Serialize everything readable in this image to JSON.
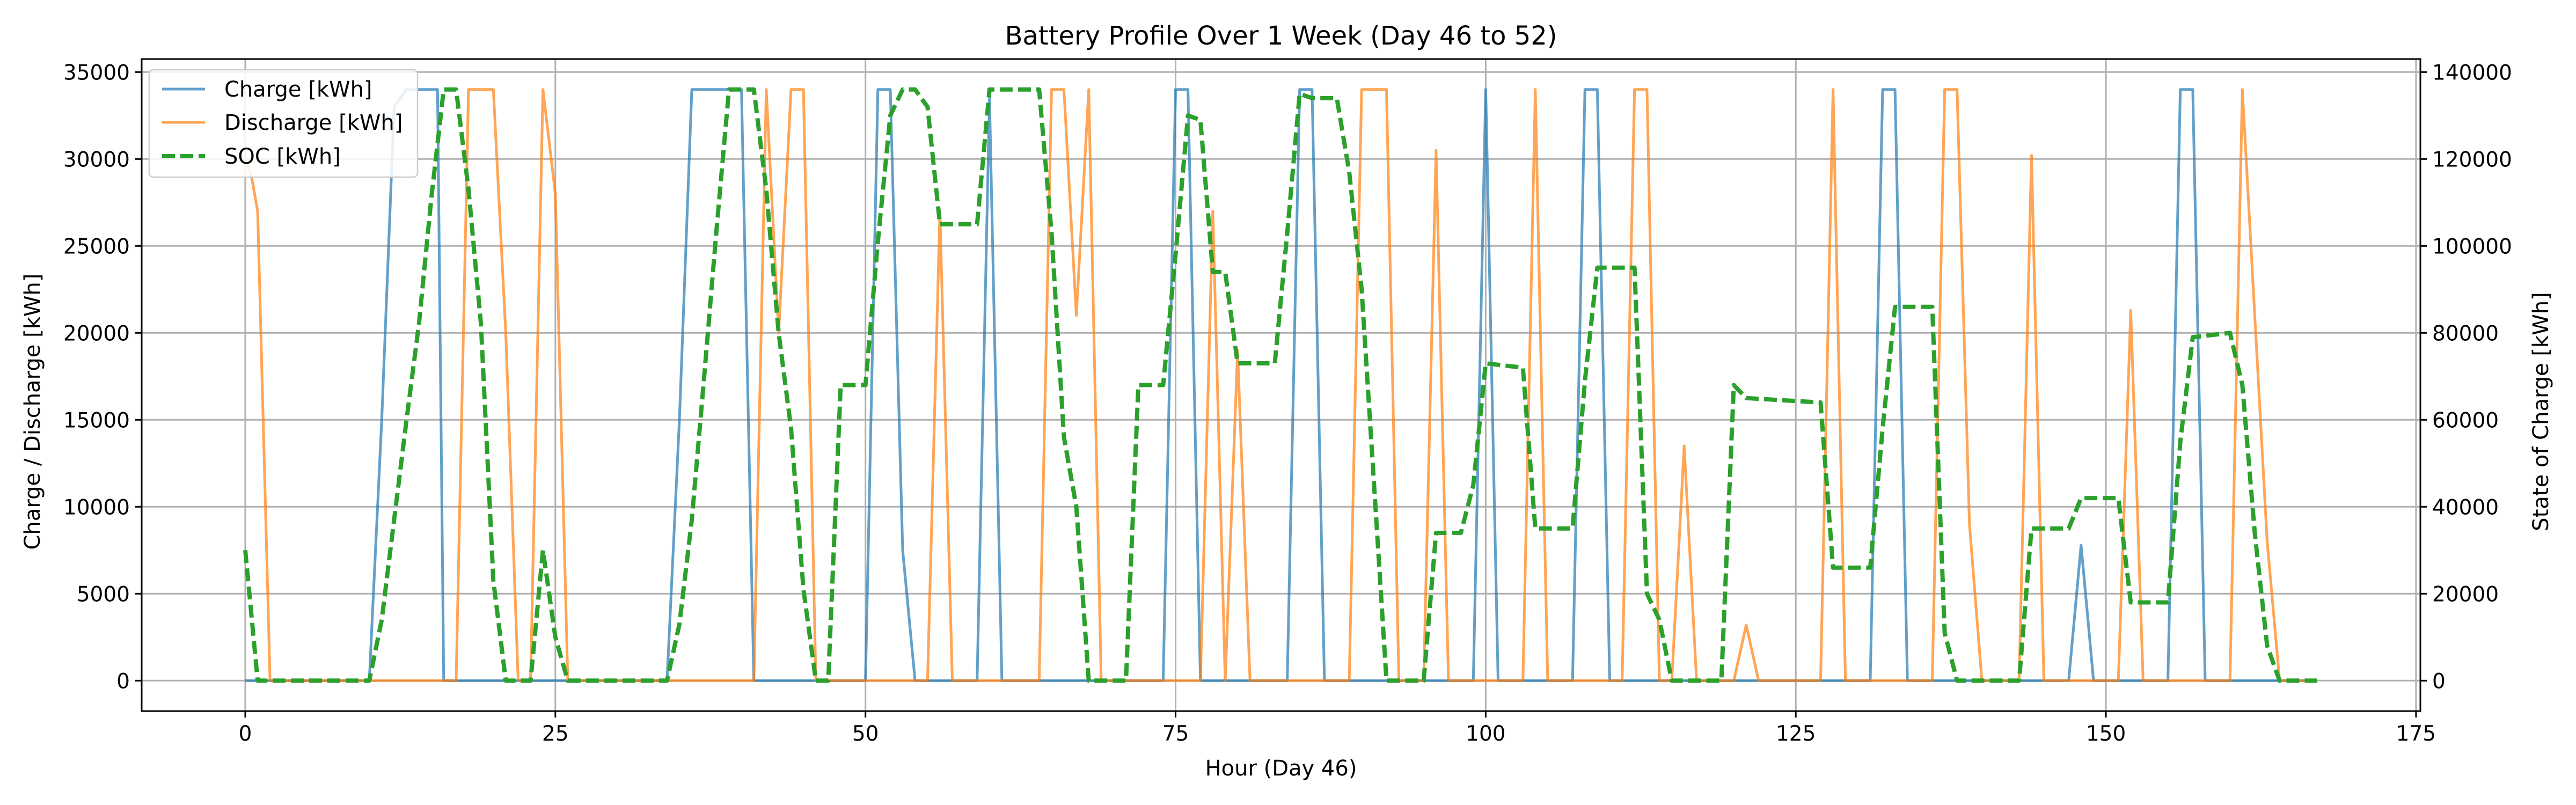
{
  "chart_data": {
    "type": "line",
    "title": "Battery Profile Over 1 Week (Day 46 to 52)",
    "xlabel": "Hour (Day 46)",
    "ylabel_left": "Charge / Discharge [kWh]",
    "ylabel_right": "State of Charge [kWh]",
    "xlim": [
      -8.35,
      175.35
    ],
    "ylim_left": [
      -1750,
      35750
    ],
    "ylim_right": [
      -7000,
      143000
    ],
    "x_ticks": [
      0,
      25,
      50,
      75,
      100,
      125,
      150,
      175
    ],
    "y_left_ticks": [
      0,
      5000,
      10000,
      15000,
      20000,
      25000,
      30000,
      35000
    ],
    "y_right_ticks": [
      0,
      20000,
      40000,
      60000,
      80000,
      100000,
      120000,
      140000
    ],
    "grid": true,
    "legend_position": "upper-left",
    "colors": {
      "charge": "#1f77b4",
      "discharge": "#ff7f0e",
      "soc": "#2ca02c"
    },
    "series": [
      {
        "name": "Charge [kWh]",
        "axis": "left",
        "style": "solid",
        "points": [
          [
            0,
            0
          ],
          [
            10,
            0
          ],
          [
            11,
            15000
          ],
          [
            12,
            33000
          ],
          [
            13,
            34000
          ],
          [
            14,
            34000
          ],
          [
            15,
            34000
          ],
          [
            15.5,
            34000
          ],
          [
            16,
            0
          ],
          [
            34,
            0
          ],
          [
            35,
            15000
          ],
          [
            36,
            34000
          ],
          [
            37,
            34000
          ],
          [
            38,
            34000
          ],
          [
            39,
            34000
          ],
          [
            40,
            34000
          ],
          [
            41,
            0
          ],
          [
            50,
            0
          ],
          [
            51,
            34000
          ],
          [
            52,
            34000
          ],
          [
            53,
            7500
          ],
          [
            54,
            0
          ],
          [
            59,
            0
          ],
          [
            60,
            33500
          ],
          [
            61,
            0
          ],
          [
            74,
            0
          ],
          [
            75,
            34000
          ],
          [
            76,
            34000
          ],
          [
            77,
            0
          ],
          [
            84,
            0
          ],
          [
            85,
            34000
          ],
          [
            86,
            34000
          ],
          [
            87,
            0
          ],
          [
            99,
            0
          ],
          [
            100,
            34000
          ],
          [
            101,
            0
          ],
          [
            107,
            0
          ],
          [
            108,
            34000
          ],
          [
            109,
            34000
          ],
          [
            110,
            0
          ],
          [
            131,
            0
          ],
          [
            132,
            34000
          ],
          [
            133,
            34000
          ],
          [
            134,
            0
          ],
          [
            147,
            0
          ],
          [
            148,
            7800
          ],
          [
            149,
            0
          ],
          [
            155,
            0
          ],
          [
            156,
            34000
          ],
          [
            157,
            34000
          ],
          [
            158,
            0
          ],
          [
            167,
            0
          ]
        ]
      },
      {
        "name": "Discharge [kWh]",
        "axis": "left",
        "style": "solid",
        "points": [
          [
            0,
            30000
          ],
          [
            0.5,
            29000
          ],
          [
            1,
            27000
          ],
          [
            2,
            0
          ],
          [
            15,
            0
          ],
          [
            16,
            0
          ],
          [
            17,
            0
          ],
          [
            18,
            34000
          ],
          [
            19,
            34000
          ],
          [
            20,
            34000
          ],
          [
            21,
            20000
          ],
          [
            22,
            0
          ],
          [
            23,
            0
          ],
          [
            24,
            34000
          ],
          [
            25,
            28000
          ],
          [
            26,
            0
          ],
          [
            41,
            0
          ],
          [
            42,
            34000
          ],
          [
            43,
            20000
          ],
          [
            44,
            34000
          ],
          [
            45,
            34000
          ],
          [
            46,
            0
          ],
          [
            54,
            0
          ],
          [
            55,
            0
          ],
          [
            56,
            27000
          ],
          [
            57,
            0
          ],
          [
            64,
            0
          ],
          [
            65,
            34000
          ],
          [
            66,
            34000
          ],
          [
            67,
            21000
          ],
          [
            68,
            34000
          ],
          [
            69,
            0
          ],
          [
            77,
            0
          ],
          [
            78,
            27000
          ],
          [
            79,
            0
          ],
          [
            80,
            19000
          ],
          [
            81,
            0
          ],
          [
            89,
            0
          ],
          [
            90,
            34000
          ],
          [
            91,
            34000
          ],
          [
            92,
            34000
          ],
          [
            93,
            0
          ],
          [
            95,
            0
          ],
          [
            96,
            30500
          ],
          [
            97,
            0
          ],
          [
            103,
            0
          ],
          [
            104,
            34000
          ],
          [
            105,
            0
          ],
          [
            111,
            0
          ],
          [
            112,
            34000
          ],
          [
            113,
            34000
          ],
          [
            114,
            0
          ],
          [
            115,
            0
          ],
          [
            116,
            13500
          ],
          [
            117,
            0
          ],
          [
            120,
            0
          ],
          [
            121,
            3200
          ],
          [
            122,
            0
          ],
          [
            127,
            0
          ],
          [
            128,
            34000
          ],
          [
            129,
            0
          ],
          [
            136,
            0
          ],
          [
            137,
            34000
          ],
          [
            138,
            34000
          ],
          [
            139,
            9000
          ],
          [
            140,
            0
          ],
          [
            143,
            0
          ],
          [
            144,
            30200
          ],
          [
            145,
            0
          ],
          [
            151,
            0
          ],
          [
            152,
            21300
          ],
          [
            153,
            0
          ],
          [
            160,
            0
          ],
          [
            161,
            34000
          ],
          [
            162,
            21000
          ],
          [
            163,
            8000
          ],
          [
            164,
            0
          ],
          [
            167,
            0
          ]
        ]
      },
      {
        "name": "SOC [kWh]",
        "axis": "right",
        "style": "dashed",
        "points": [
          [
            0,
            30000
          ],
          [
            1,
            0
          ],
          [
            10,
            0
          ],
          [
            11,
            14000
          ],
          [
            12,
            37000
          ],
          [
            13,
            60000
          ],
          [
            14,
            82000
          ],
          [
            15,
            111000
          ],
          [
            16,
            136000
          ],
          [
            17,
            136000
          ],
          [
            18,
            113000
          ],
          [
            19,
            82000
          ],
          [
            20,
            23000
          ],
          [
            21,
            0
          ],
          [
            23,
            0
          ],
          [
            24,
            30000
          ],
          [
            25,
            10000
          ],
          [
            26,
            0
          ],
          [
            34,
            0
          ],
          [
            35,
            13000
          ],
          [
            36,
            37000
          ],
          [
            37,
            70000
          ],
          [
            38,
            104000
          ],
          [
            39,
            136000
          ],
          [
            40,
            136000
          ],
          [
            41,
            136000
          ],
          [
            42,
            113000
          ],
          [
            43,
            80000
          ],
          [
            44,
            58000
          ],
          [
            45,
            21000
          ],
          [
            46,
            0
          ],
          [
            47,
            0
          ],
          [
            48,
            68000
          ],
          [
            50,
            68000
          ],
          [
            51,
            101000
          ],
          [
            52,
            130000
          ],
          [
            53,
            136000
          ],
          [
            54,
            136000
          ],
          [
            55,
            132000
          ],
          [
            56,
            105000
          ],
          [
            59,
            105000
          ],
          [
            60,
            136000
          ],
          [
            64,
            136000
          ],
          [
            65,
            103000
          ],
          [
            66,
            56000
          ],
          [
            67,
            40000
          ],
          [
            68,
            0
          ],
          [
            71,
            0
          ],
          [
            72,
            68000
          ],
          [
            74,
            68000
          ],
          [
            75,
            98000
          ],
          [
            76,
            130000
          ],
          [
            77,
            129000
          ],
          [
            78,
            94000
          ],
          [
            79,
            94000
          ],
          [
            80,
            73000
          ],
          [
            83,
            73000
          ],
          [
            84,
            103000
          ],
          [
            85,
            135000
          ],
          [
            86,
            134000
          ],
          [
            88,
            134000
          ],
          [
            89,
            117000
          ],
          [
            90,
            90000
          ],
          [
            91,
            45000
          ],
          [
            92,
            0
          ],
          [
            95,
            0
          ],
          [
            96,
            34000
          ],
          [
            98,
            34000
          ],
          [
            99,
            45000
          ],
          [
            100,
            73000
          ],
          [
            103,
            72000
          ],
          [
            104,
            35000
          ],
          [
            107,
            35000
          ],
          [
            108,
            69000
          ],
          [
            109,
            95000
          ],
          [
            112,
            95000
          ],
          [
            113,
            20000
          ],
          [
            114,
            14000
          ],
          [
            115,
            0
          ],
          [
            119,
            0
          ],
          [
            120,
            68000
          ],
          [
            121,
            65000
          ],
          [
            127,
            64000
          ],
          [
            128,
            26000
          ],
          [
            131,
            26000
          ],
          [
            132,
            58000
          ],
          [
            133,
            86000
          ],
          [
            136,
            86000
          ],
          [
            137,
            11000
          ],
          [
            138,
            0
          ],
          [
            143,
            0
          ],
          [
            144,
            35000
          ],
          [
            147,
            35000
          ],
          [
            148,
            42000
          ],
          [
            151,
            42000
          ],
          [
            152,
            18000
          ],
          [
            155,
            18000
          ],
          [
            156,
            55000
          ],
          [
            157,
            79000
          ],
          [
            160,
            80000
          ],
          [
            161,
            68000
          ],
          [
            162,
            34000
          ],
          [
            163,
            8000
          ],
          [
            164,
            0
          ],
          [
            167,
            0
          ]
        ]
      }
    ]
  }
}
